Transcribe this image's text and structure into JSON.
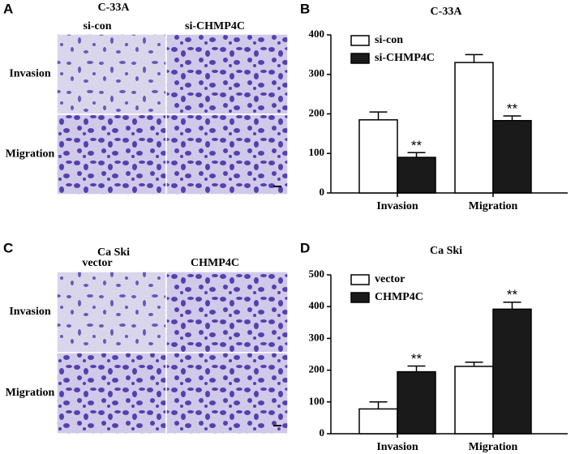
{
  "panel_labels": [
    "A",
    "B",
    "C",
    "D"
  ],
  "image_panels": [
    {
      "title": "C-33A",
      "columns": [
        "si-con",
        "si-CHMP4C"
      ],
      "rows": [
        "Invasion",
        "Migration"
      ]
    },
    {
      "title": "Ca Ski",
      "columns": [
        "vector",
        "CHMP4C"
      ],
      "rows": [
        "Invasion",
        "Migration"
      ]
    }
  ],
  "chart_data": [
    {
      "type": "bar",
      "title": "C-33A",
      "categories": [
        "Invasion",
        "Migration"
      ],
      "series": [
        {
          "name": "si-con",
          "color": "#ffffff",
          "values": [
            185,
            330
          ],
          "errors": [
            20,
            20
          ]
        },
        {
          "name": "si-CHMP4C",
          "color": "#1a1a1a",
          "values": [
            90,
            183
          ],
          "errors": [
            12,
            12
          ],
          "annotations": [
            "**",
            "**"
          ]
        }
      ],
      "ylim": [
        0,
        400
      ],
      "yticks": [
        0,
        100,
        200,
        300,
        400
      ],
      "legend": "top-left"
    },
    {
      "type": "bar",
      "title": "Ca Ski",
      "categories": [
        "Invasion",
        "Migration"
      ],
      "series": [
        {
          "name": "vector",
          "color": "#ffffff",
          "values": [
            78,
            212
          ],
          "errors": [
            22,
            13
          ]
        },
        {
          "name": "CHMP4C",
          "color": "#1a1a1a",
          "values": [
            195,
            392
          ],
          "errors": [
            18,
            22
          ],
          "annotations": [
            "**",
            "**"
          ]
        }
      ],
      "ylim": [
        0,
        500
      ],
      "yticks": [
        0,
        100,
        200,
        300,
        400,
        500
      ],
      "legend": "top-left"
    }
  ]
}
